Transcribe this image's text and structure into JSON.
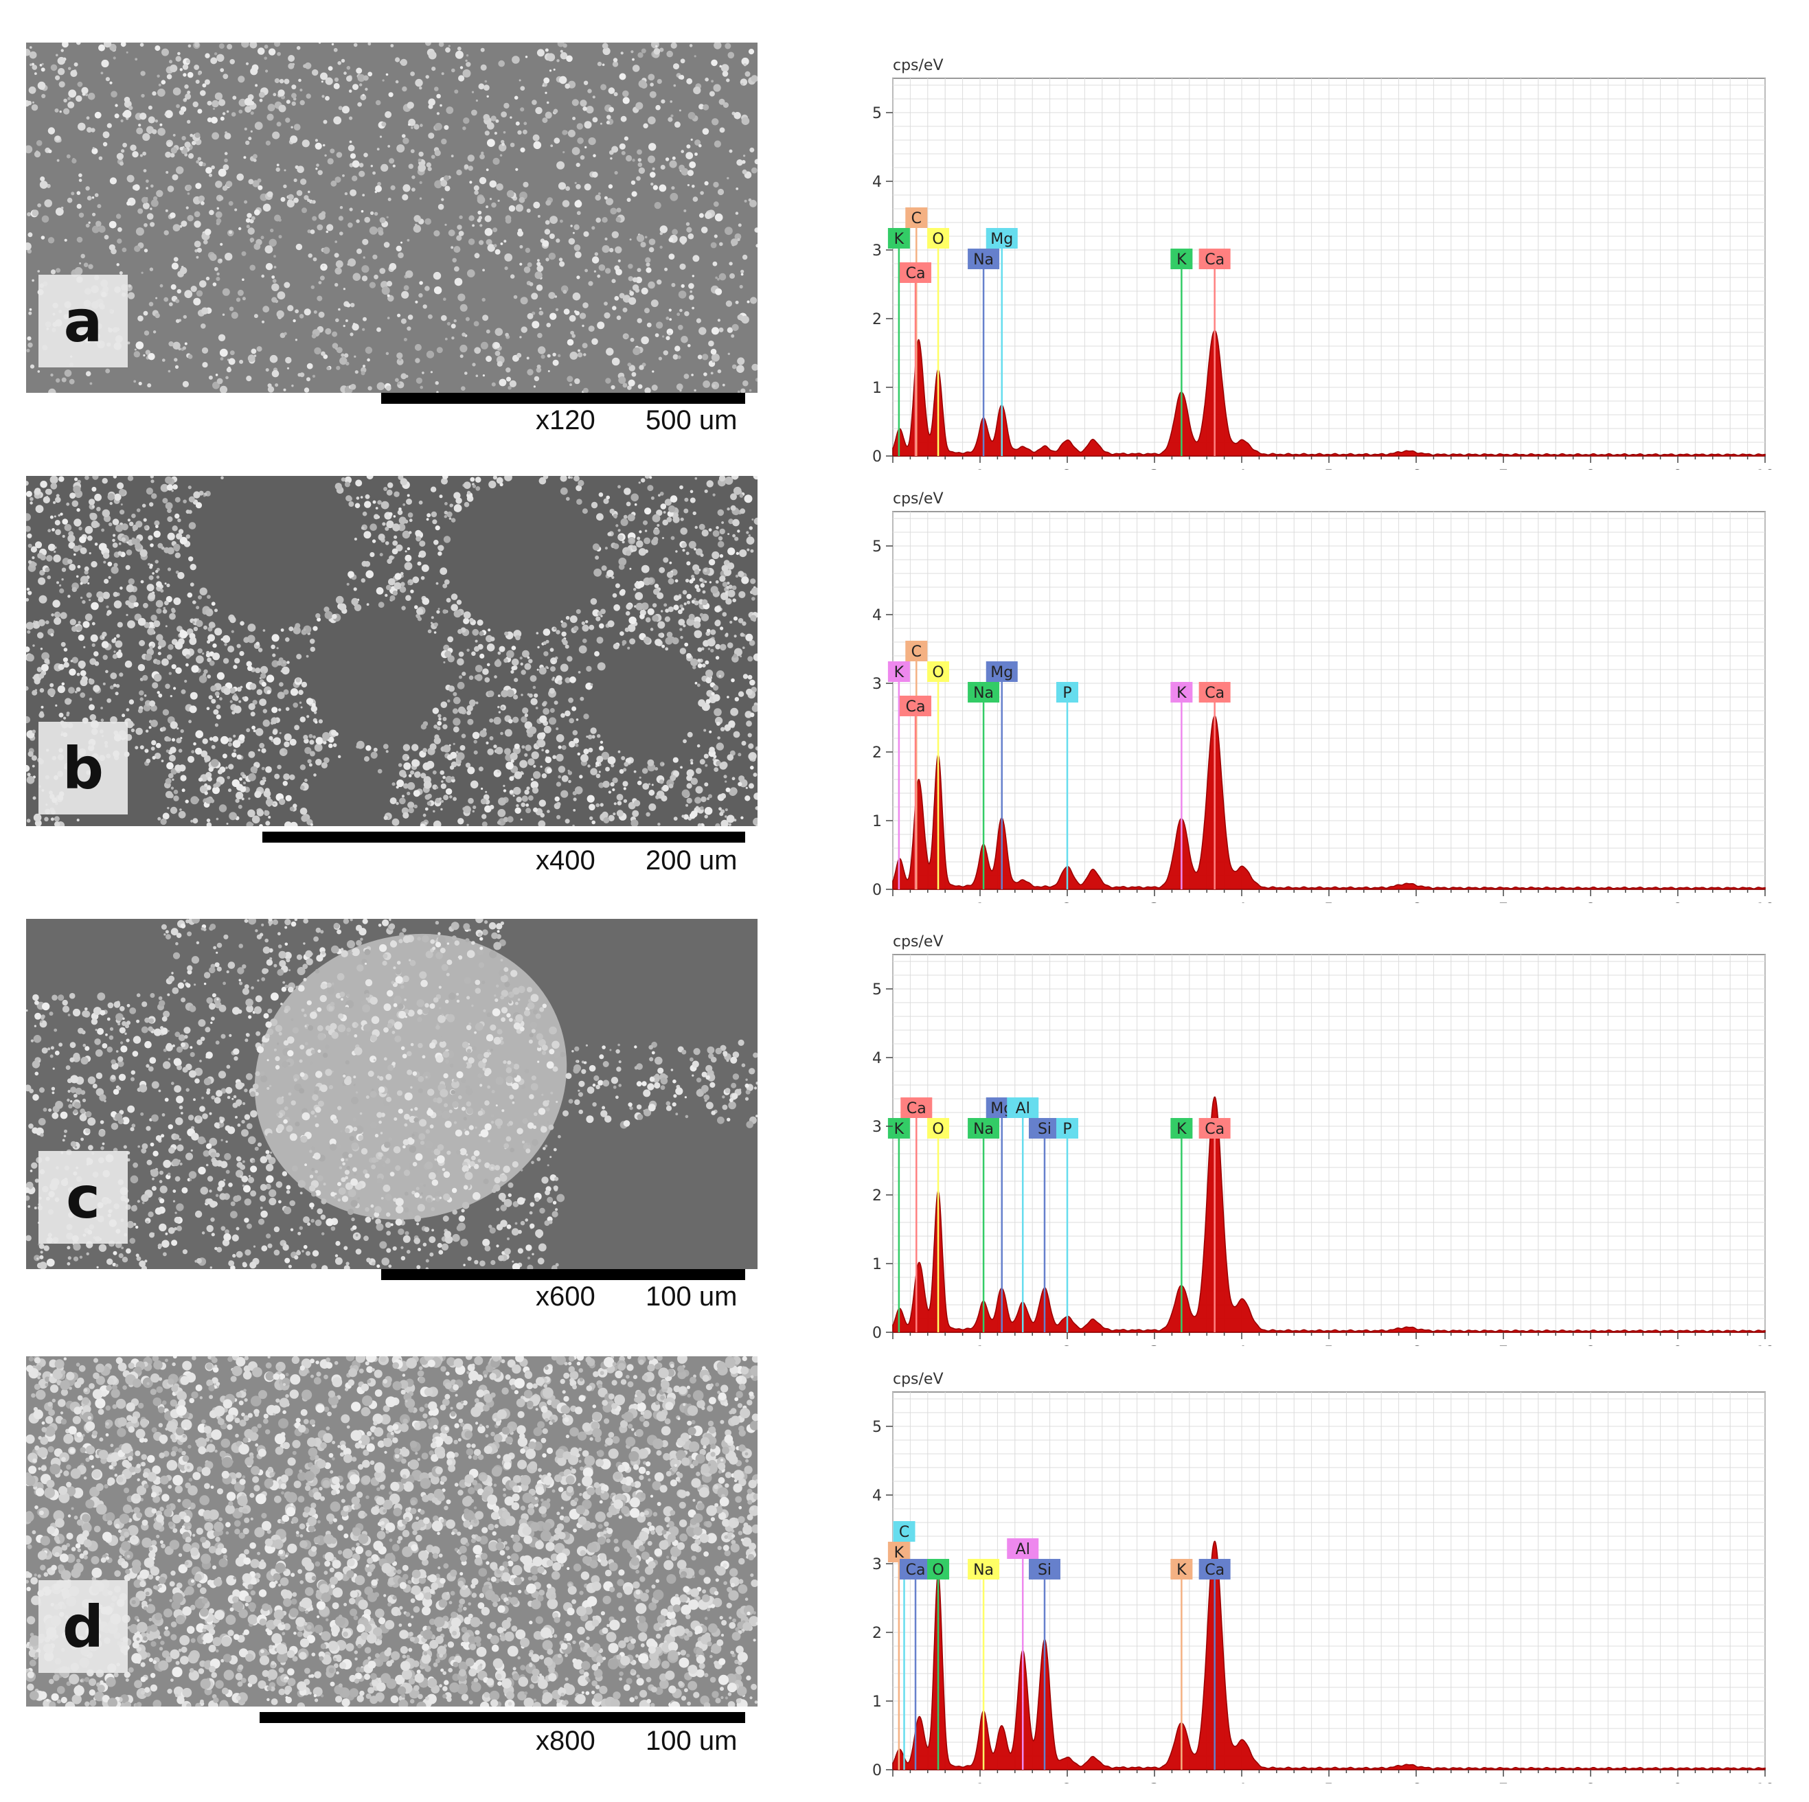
{
  "panels": [
    {
      "letter": "a",
      "magnification": "x120",
      "scale_length": "500 um",
      "texture": "particles"
    },
    {
      "letter": "b",
      "magnification": "x400",
      "scale_length": "200 um",
      "texture": "porous"
    },
    {
      "letter": "c",
      "magnification": "x600",
      "scale_length": "100 um",
      "texture": "agglomerate"
    },
    {
      "letter": "d",
      "magnification": "x800",
      "scale_length": "100 um",
      "texture": "dense"
    }
  ],
  "chart_data": [
    {
      "type": "line",
      "ylabel": "cps/eV",
      "xlabel": "keV",
      "xlim": [
        0,
        10
      ],
      "ylim": [
        0,
        5.5
      ],
      "x_ticks": [
        "1",
        "2",
        "3",
        "4",
        "5",
        "6",
        "7",
        "8",
        "9",
        "10"
      ],
      "y_ticks": [
        "0",
        "1",
        "2",
        "3",
        "4",
        "5"
      ],
      "grid": true,
      "peaks": [
        {
          "x": 0.08,
          "y": 0.35
        },
        {
          "x": 0.28,
          "y": 1.3
        },
        {
          "x": 0.34,
          "y": 0.7
        },
        {
          "x": 0.52,
          "y": 1.2
        },
        {
          "x": 1.04,
          "y": 0.5
        },
        {
          "x": 1.25,
          "y": 0.7
        },
        {
          "x": 1.49,
          "y": 0.1
        },
        {
          "x": 1.74,
          "y": 0.1
        },
        {
          "x": 2.0,
          "y": 0.2
        },
        {
          "x": 2.3,
          "y": 0.2
        },
        {
          "x": 3.31,
          "y": 0.9
        },
        {
          "x": 3.69,
          "y": 1.8
        },
        {
          "x": 4.01,
          "y": 0.2
        },
        {
          "x": 5.9,
          "y": 0.05
        }
      ],
      "element_labels": [
        {
          "label": "C",
          "x": 0.27,
          "y": 3.5,
          "color": "#f4b183"
        },
        {
          "label": "K",
          "x": 0.07,
          "y": 3.2,
          "color": "#33cc66"
        },
        {
          "label": "O",
          "x": 0.52,
          "y": 3.2,
          "color": "#ffff66"
        },
        {
          "label": "Ca",
          "x": 0.26,
          "y": 2.7,
          "color": "#ff8080"
        },
        {
          "label": "Na",
          "x": 1.04,
          "y": 2.9,
          "color": "#6680cc"
        },
        {
          "label": "Mg",
          "x": 1.25,
          "y": 3.2,
          "color": "#66ddee"
        },
        {
          "label": "K",
          "x": 3.31,
          "y": 2.9,
          "color": "#33cc66"
        },
        {
          "label": "Ca",
          "x": 3.69,
          "y": 2.9,
          "color": "#ff8080"
        }
      ]
    },
    {
      "type": "line",
      "ylabel": "cps/eV",
      "xlabel": "keV",
      "xlim": [
        0,
        10
      ],
      "ylim": [
        0,
        5.5
      ],
      "x_ticks": [
        "1",
        "2",
        "3",
        "4",
        "5",
        "6",
        "7",
        "8",
        "9",
        "10"
      ],
      "y_ticks": [
        "0",
        "1",
        "2",
        "3",
        "4",
        "5"
      ],
      "grid": true,
      "peaks": [
        {
          "x": 0.08,
          "y": 0.4
        },
        {
          "x": 0.28,
          "y": 1.2
        },
        {
          "x": 0.34,
          "y": 0.7
        },
        {
          "x": 0.52,
          "y": 1.9
        },
        {
          "x": 1.04,
          "y": 0.6
        },
        {
          "x": 1.25,
          "y": 1.0
        },
        {
          "x": 1.49,
          "y": 0.1
        },
        {
          "x": 2.0,
          "y": 0.3
        },
        {
          "x": 2.3,
          "y": 0.25
        },
        {
          "x": 3.31,
          "y": 1.0
        },
        {
          "x": 3.69,
          "y": 2.5
        },
        {
          "x": 4.01,
          "y": 0.3
        },
        {
          "x": 5.9,
          "y": 0.06
        }
      ],
      "element_labels": [
        {
          "label": "C",
          "x": 0.27,
          "y": 3.5,
          "color": "#f4b183"
        },
        {
          "label": "K",
          "x": 0.07,
          "y": 3.2,
          "color": "#ee88ee"
        },
        {
          "label": "O",
          "x": 0.52,
          "y": 3.2,
          "color": "#ffff66"
        },
        {
          "label": "Ca",
          "x": 0.26,
          "y": 2.7,
          "color": "#ff8080"
        },
        {
          "label": "Mg",
          "x": 1.25,
          "y": 3.2,
          "color": "#6680cc"
        },
        {
          "label": "Na",
          "x": 1.04,
          "y": 2.9,
          "color": "#33cc66"
        },
        {
          "label": "P",
          "x": 2.0,
          "y": 2.9,
          "color": "#66ddee"
        },
        {
          "label": "K",
          "x": 3.31,
          "y": 2.9,
          "color": "#ee88ee"
        },
        {
          "label": "Ca",
          "x": 3.69,
          "y": 2.9,
          "color": "#ff8080"
        }
      ]
    },
    {
      "type": "line",
      "ylabel": "cps/eV",
      "xlabel": "keV",
      "xlim": [
        0,
        10
      ],
      "ylim": [
        0,
        5.5
      ],
      "x_ticks": [
        "1",
        "2",
        "3",
        "4",
        "5",
        "6",
        "7",
        "8",
        "9",
        "10"
      ],
      "y_ticks": [
        "0",
        "1",
        "2",
        "3",
        "4",
        "5"
      ],
      "grid": true,
      "peaks": [
        {
          "x": 0.08,
          "y": 0.3
        },
        {
          "x": 0.28,
          "y": 0.7
        },
        {
          "x": 0.34,
          "y": 0.5
        },
        {
          "x": 0.52,
          "y": 2.0
        },
        {
          "x": 1.04,
          "y": 0.4
        },
        {
          "x": 1.25,
          "y": 0.6
        },
        {
          "x": 1.49,
          "y": 0.4
        },
        {
          "x": 1.74,
          "y": 0.6
        },
        {
          "x": 2.0,
          "y": 0.2
        },
        {
          "x": 2.3,
          "y": 0.15
        },
        {
          "x": 3.31,
          "y": 0.65
        },
        {
          "x": 3.69,
          "y": 3.4
        },
        {
          "x": 4.01,
          "y": 0.45
        },
        {
          "x": 5.9,
          "y": 0.05
        }
      ],
      "element_labels": [
        {
          "label": "Ca",
          "x": 0.27,
          "y": 3.3,
          "color": "#ff8080"
        },
        {
          "label": "K",
          "x": 0.07,
          "y": 3.0,
          "color": "#33cc66"
        },
        {
          "label": "O",
          "x": 0.52,
          "y": 3.0,
          "color": "#ffff66"
        },
        {
          "label": "Na",
          "x": 1.04,
          "y": 3.0,
          "color": "#33cc66"
        },
        {
          "label": "Mg",
          "x": 1.25,
          "y": 3.3,
          "color": "#6680cc"
        },
        {
          "label": "Al",
          "x": 1.49,
          "y": 3.3,
          "color": "#66ddee"
        },
        {
          "label": "Si",
          "x": 1.74,
          "y": 3.0,
          "color": "#6680cc"
        },
        {
          "label": "P",
          "x": 2.0,
          "y": 3.0,
          "color": "#66ddee"
        },
        {
          "label": "K",
          "x": 3.31,
          "y": 3.0,
          "color": "#33cc66"
        },
        {
          "label": "Ca",
          "x": 3.69,
          "y": 3.0,
          "color": "#ff8080"
        }
      ]
    },
    {
      "type": "line",
      "ylabel": "cps/eV",
      "xlabel": "keV",
      "xlim": [
        0,
        10
      ],
      "ylim": [
        0,
        5.5
      ],
      "x_ticks": [
        "1",
        "2",
        "3",
        "4",
        "5",
        "6",
        "7",
        "8",
        "9",
        "10"
      ],
      "y_ticks": [
        "0",
        "1",
        "2",
        "3",
        "4",
        "5"
      ],
      "grid": true,
      "peaks": [
        {
          "x": 0.08,
          "y": 0.25
        },
        {
          "x": 0.28,
          "y": 0.5
        },
        {
          "x": 0.34,
          "y": 0.4
        },
        {
          "x": 0.52,
          "y": 2.8
        },
        {
          "x": 1.04,
          "y": 0.8
        },
        {
          "x": 1.25,
          "y": 0.6
        },
        {
          "x": 1.49,
          "y": 1.7
        },
        {
          "x": 1.74,
          "y": 1.85
        },
        {
          "x": 2.0,
          "y": 0.15
        },
        {
          "x": 2.3,
          "y": 0.15
        },
        {
          "x": 3.31,
          "y": 0.65
        },
        {
          "x": 3.69,
          "y": 3.3
        },
        {
          "x": 4.01,
          "y": 0.4
        },
        {
          "x": 5.9,
          "y": 0.05
        }
      ],
      "element_labels": [
        {
          "label": "C",
          "x": 0.13,
          "y": 3.5,
          "color": "#66ddee"
        },
        {
          "label": "K",
          "x": 0.07,
          "y": 3.2,
          "color": "#f4b183"
        },
        {
          "label": "Ca",
          "x": 0.26,
          "y": 2.95,
          "color": "#6680cc"
        },
        {
          "label": "O",
          "x": 0.52,
          "y": 2.95,
          "color": "#33cc66"
        },
        {
          "label": "Na",
          "x": 1.04,
          "y": 2.95,
          "color": "#ffff66"
        },
        {
          "label": "Al",
          "x": 1.49,
          "y": 3.25,
          "color": "#ee88ee"
        },
        {
          "label": "Si",
          "x": 1.74,
          "y": 2.95,
          "color": "#6680cc"
        },
        {
          "label": "K",
          "x": 3.31,
          "y": 2.95,
          "color": "#f4b183"
        },
        {
          "label": "Ca",
          "x": 3.69,
          "y": 2.95,
          "color": "#6680cc"
        }
      ]
    }
  ]
}
